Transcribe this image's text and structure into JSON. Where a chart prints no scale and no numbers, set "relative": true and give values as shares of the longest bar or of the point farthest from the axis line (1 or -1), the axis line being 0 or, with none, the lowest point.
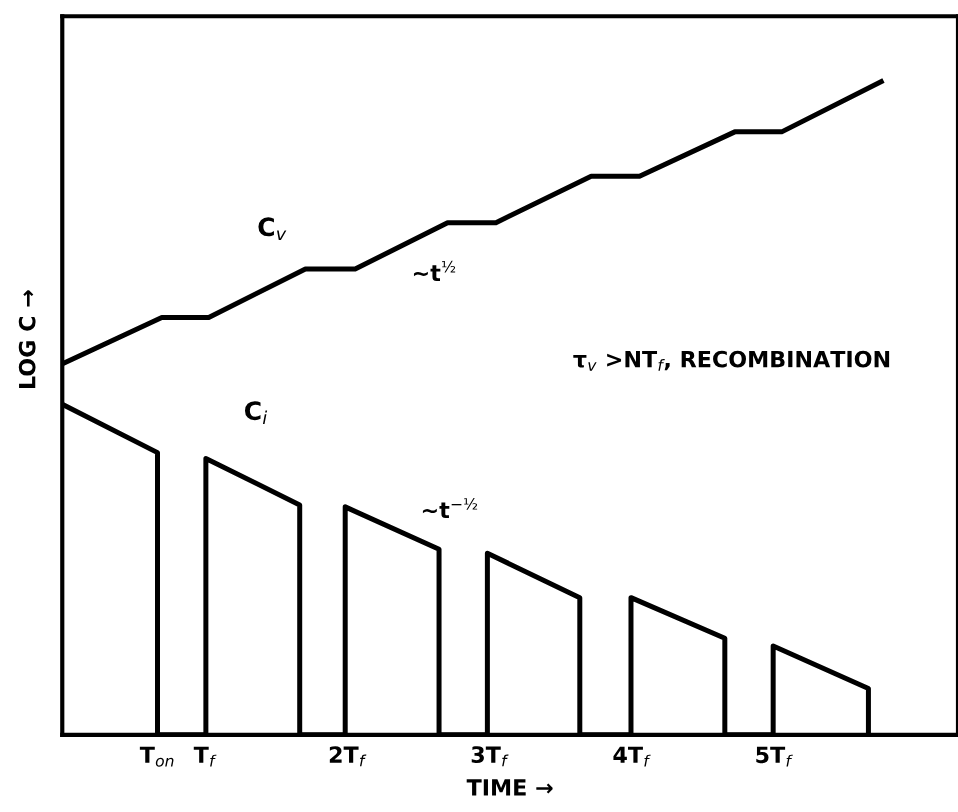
{
  "chart_data": {
    "type": "line",
    "relative": true,
    "xlabel": "TIME →",
    "ylabel": "LOG C →",
    "xlim": [
      0,
      6.3
    ],
    "xticks": [
      {
        "value": 0.67,
        "label": "T$_{on}$"
      },
      {
        "value": 1,
        "label": "T$_{f}$"
      },
      {
        "value": 2,
        "label": "2T$_{f}$"
      },
      {
        "value": 3,
        "label": "3T$_{f}$"
      },
      {
        "value": 4,
        "label": "4T$_{f}$"
      },
      {
        "value": 5,
        "label": "5T$_{f}$"
      }
    ],
    "series": [
      {
        "name": "C$_{v}$",
        "color": "#000000",
        "x": [
          0,
          0.7,
          1.03,
          1.71,
          2.06,
          2.71,
          3.05,
          3.72,
          4.06,
          4.73,
          5.06,
          5.76
        ],
        "values": [
          0.568,
          0.639,
          0.639,
          0.713,
          0.713,
          0.784,
          0.784,
          0.855,
          0.855,
          0.923,
          0.923,
          1
        ]
      },
      {
        "name": "C$_{i}$",
        "color": "#000000",
        "x": [
          0,
          0.67,
          0.67,
          1.01,
          1.01,
          1.67,
          1.67,
          1.99,
          1.99,
          2.65,
          2.65,
          2.99,
          2.99,
          3.64,
          3.64,
          4.0,
          4.0,
          4.66,
          4.66,
          5.0,
          5.0,
          5.67,
          5.67
        ],
        "values": [
          0.506,
          0.432,
          0,
          0,
          0.423,
          0.352,
          0,
          0,
          0.349,
          0.284,
          0,
          0,
          0.278,
          0.21,
          0,
          0,
          0.21,
          0.148,
          0,
          0,
          0.136,
          0.071,
          0
        ]
      }
    ],
    "annotations": [
      "∼t$^{½}$",
      "∼t$^{−½}$",
      "τ$_{v}$ >NT$_{f}$, RECOMBINATION"
    ],
    "grid": false,
    "marker": "none",
    "line_style": "solid",
    "legend": false
  }
}
